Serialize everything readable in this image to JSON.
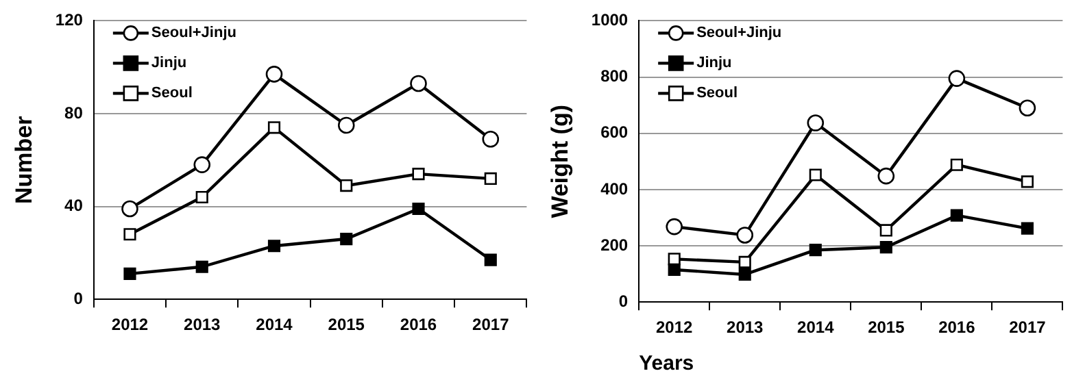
{
  "chart_data": [
    {
      "type": "line",
      "ylabel": "Number",
      "categories": [
        "2012",
        "2013",
        "2014",
        "2015",
        "2016",
        "2017"
      ],
      "ylim": [
        0,
        120
      ],
      "yticks": [
        0,
        40,
        80,
        120
      ],
      "grid": "y",
      "legend": "top left",
      "line_style": "solid",
      "series": [
        {
          "name": "Seoul+Jinju",
          "color": "#000000",
          "marker": "circle",
          "values": [
            39,
            58,
            97,
            75,
            93,
            69
          ]
        },
        {
          "name": "Jinju",
          "color": "#000000",
          "marker": "square",
          "values": [
            11,
            14,
            23,
            26,
            39,
            17
          ]
        },
        {
          "name": "Seoul",
          "color": "#000000",
          "marker": "square",
          "values": [
            28,
            44,
            74,
            49,
            54,
            52
          ]
        }
      ]
    },
    {
      "type": "line",
      "ylabel": "Weight (g)",
      "xlabel": "Years",
      "categories": [
        "2012",
        "2013",
        "2014",
        "2015",
        "2016",
        "2017"
      ],
      "ylim": [
        0,
        1000
      ],
      "yticks": [
        0,
        200,
        400,
        600,
        800,
        1000
      ],
      "grid": "y",
      "legend": "top left",
      "line_style": "solid",
      "series": [
        {
          "name": "Seoul+Jinju",
          "color": "#000000",
          "marker": "circle",
          "values": [
            268,
            238,
            637,
            448,
            795,
            690
          ]
        },
        {
          "name": "Jinju",
          "color": "#000000",
          "marker": "square",
          "values": [
            115,
            98,
            185,
            195,
            308,
            262
          ]
        },
        {
          "name": "Seoul",
          "color": "#000000",
          "marker": "square",
          "values": [
            153,
            142,
            452,
            255,
            488,
            428
          ]
        }
      ]
    }
  ]
}
